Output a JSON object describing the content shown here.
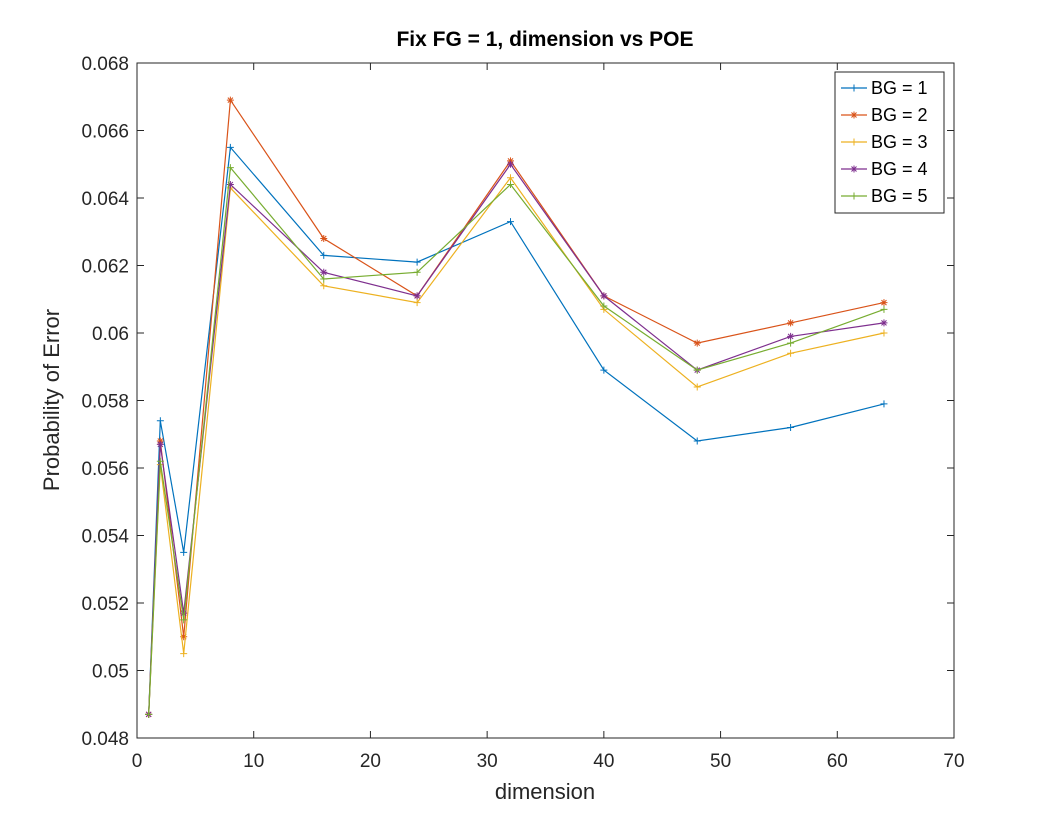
{
  "chart_data": {
    "type": "line",
    "title": "Fix FG = 1, dimension vs POE",
    "xlabel": "dimension",
    "ylabel": "Probability of Error",
    "xlim": [
      0,
      70
    ],
    "ylim": [
      0.048,
      0.068
    ],
    "xticks": [
      0,
      10,
      20,
      30,
      40,
      50,
      60,
      70
    ],
    "yticks": [
      0.048,
      0.05,
      0.052,
      0.054,
      0.056,
      0.058,
      0.06,
      0.062,
      0.064,
      0.066,
      0.068
    ],
    "xtick_labels": [
      "0",
      "10",
      "20",
      "30",
      "40",
      "50",
      "60",
      "70"
    ],
    "ytick_labels": [
      "0.048",
      "0.05",
      "0.052",
      "0.054",
      "0.056",
      "0.058",
      "0.06",
      "0.062",
      "0.064",
      "0.066",
      "0.068"
    ],
    "grid": false,
    "legend_position": "top-right",
    "x": [
      1,
      2,
      4,
      8,
      16,
      24,
      32,
      40,
      48,
      56,
      64
    ],
    "series": [
      {
        "name": "BG = 1",
        "color": "#0072BD",
        "marker": "plus",
        "values": [
          0.0487,
          0.0574,
          0.0535,
          0.0655,
          0.0623,
          0.0621,
          0.0633,
          0.0589,
          0.0568,
          0.0572,
          0.0579
        ]
      },
      {
        "name": "BG = 2",
        "color": "#D95319",
        "marker": "asterisk",
        "values": [
          0.0487,
          0.0568,
          0.051,
          0.0669,
          0.0628,
          0.0611,
          0.0651,
          0.0611,
          0.0597,
          0.0603,
          0.0609
        ]
      },
      {
        "name": "BG = 3",
        "color": "#EDB120",
        "marker": "plus",
        "values": [
          0.0487,
          0.0561,
          0.0505,
          0.0643,
          0.0614,
          0.0609,
          0.0646,
          0.0607,
          0.0584,
          0.0594,
          0.06
        ]
      },
      {
        "name": "BG = 4",
        "color": "#7E2F8E",
        "marker": "asterisk",
        "values": [
          0.0487,
          0.0567,
          0.0517,
          0.0644,
          0.0618,
          0.0611,
          0.065,
          0.0611,
          0.0589,
          0.0599,
          0.0603
        ]
      },
      {
        "name": "BG = 5",
        "color": "#77AC30",
        "marker": "plus",
        "values": [
          0.0487,
          0.0562,
          0.0515,
          0.0649,
          0.0616,
          0.0618,
          0.0644,
          0.0608,
          0.0589,
          0.0597,
          0.0607
        ]
      }
    ]
  }
}
